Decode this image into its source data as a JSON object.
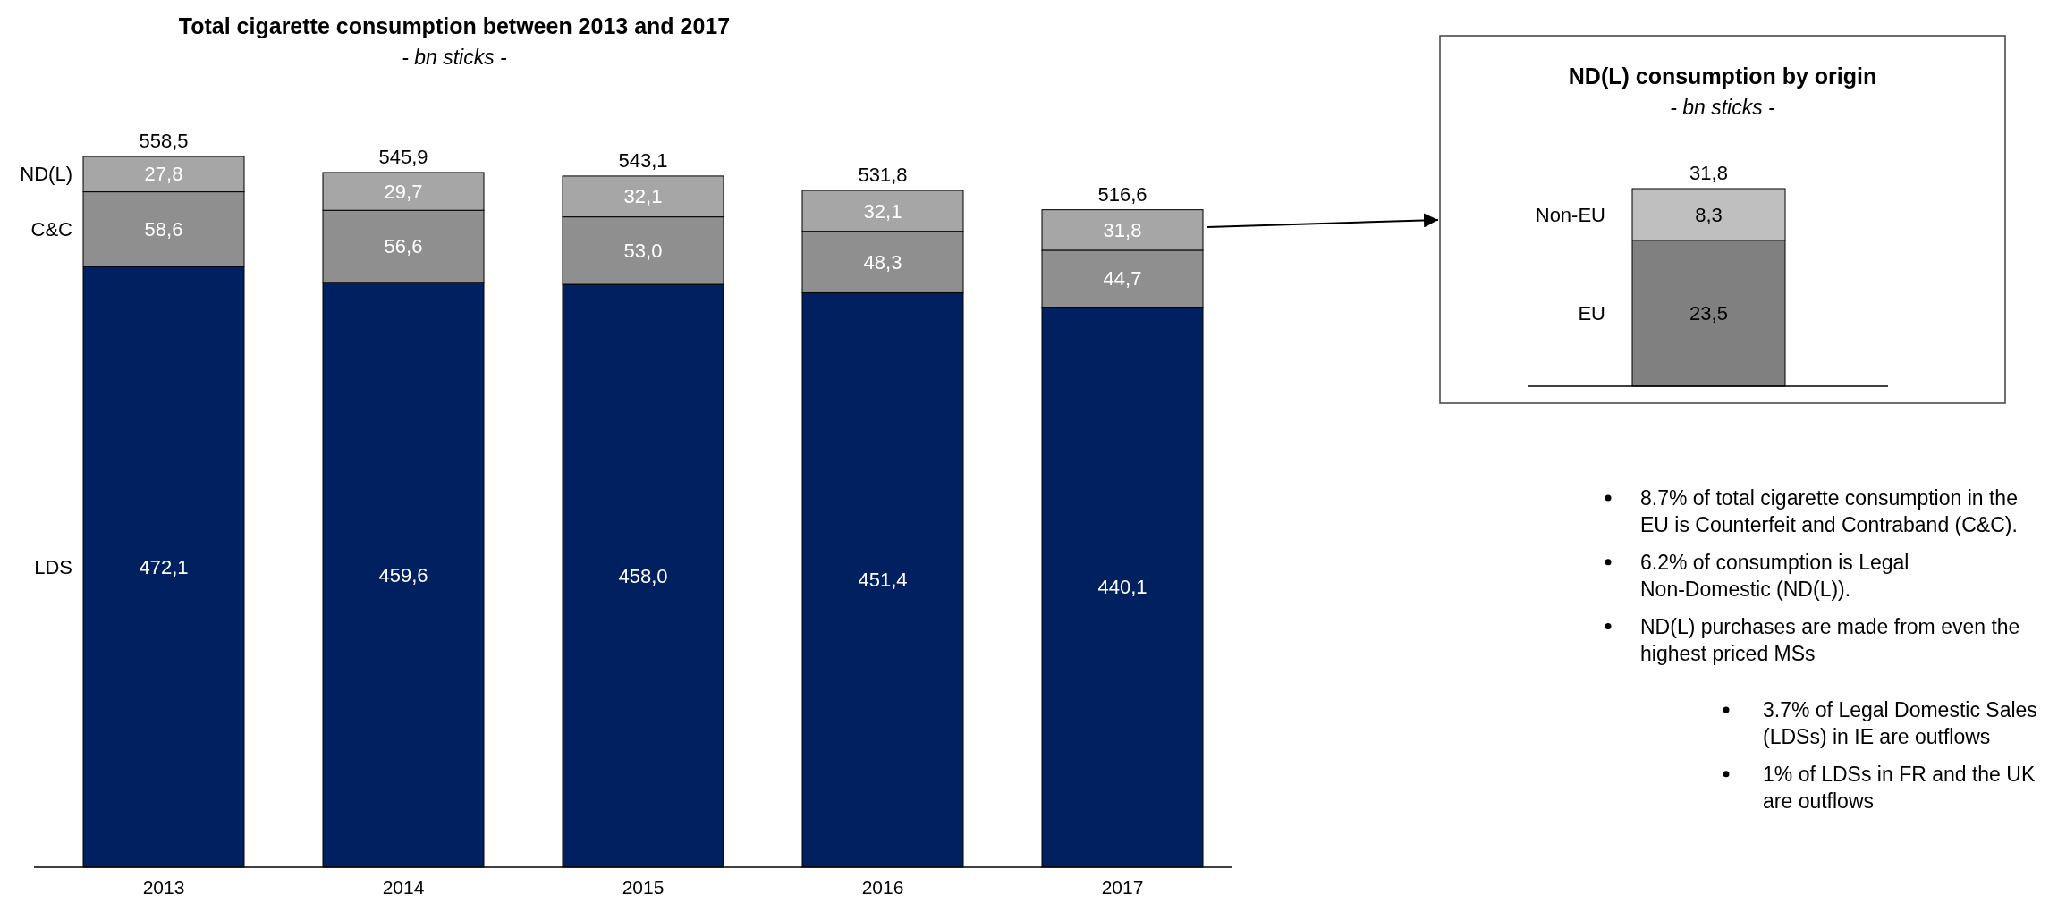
{
  "chart_data": [
    {
      "type": "bar",
      "title": "Total cigarette consumption between 2013 and 2017",
      "subtitle": "- bn sticks -",
      "categories": [
        "2013",
        "2014",
        "2015",
        "2016",
        "2017"
      ],
      "stacked": true,
      "series": [
        {
          "name": "LDS",
          "color": "#002060",
          "values": [
            472.1,
            459.6,
            458.0,
            451.4,
            440.1
          ],
          "value_labels": [
            "472,1",
            "459,6",
            "458,0",
            "451,4",
            "440,1"
          ]
        },
        {
          "name": "C&C",
          "color": "#8f8f8f",
          "values": [
            58.6,
            56.6,
            53.0,
            48.3,
            44.7
          ],
          "value_labels": [
            "58,6",
            "56,6",
            "53,0",
            "48,3",
            "44,7"
          ]
        },
        {
          "name": "ND(L)",
          "color": "#a6a6a6",
          "values": [
            27.8,
            29.7,
            32.1,
            32.1,
            31.8
          ],
          "value_labels": [
            "27,8",
            "29,7",
            "32,1",
            "32,1",
            "31,8"
          ]
        }
      ],
      "totals": [
        "558,5",
        "545,9",
        "543,1",
        "531,8",
        "516,6"
      ]
    },
    {
      "type": "bar",
      "title": "ND(L) consumption by origin",
      "subtitle": "- bn sticks -",
      "categories": [
        null
      ],
      "stacked": true,
      "series": [
        {
          "name": "EU",
          "color": "#808080",
          "values": [
            23.5
          ],
          "value_labels": [
            "23,5"
          ]
        },
        {
          "name": "Non-EU",
          "color": "#bfbfbf",
          "values": [
            8.3
          ],
          "value_labels": [
            "8,3"
          ]
        }
      ],
      "totals": [
        "31,8"
      ]
    },
    {
      "type": "other",
      "annotations": [
        "8.7% of total cigarette consumption in the EU is Counterfeit and Contraband (C&C).",
        "6.2% of consumption is Legal Non-Domestic (ND(L)).",
        "ND(L) purchases are made from even the highest priced MSs"
      ]
    },
    {
      "type": "other",
      "annotations": [
        "3.7% of Legal Domestic Sales (LDSs) in IE are outflows",
        "1% of LDSs in FR and the UK are outflows"
      ]
    }
  ]
}
